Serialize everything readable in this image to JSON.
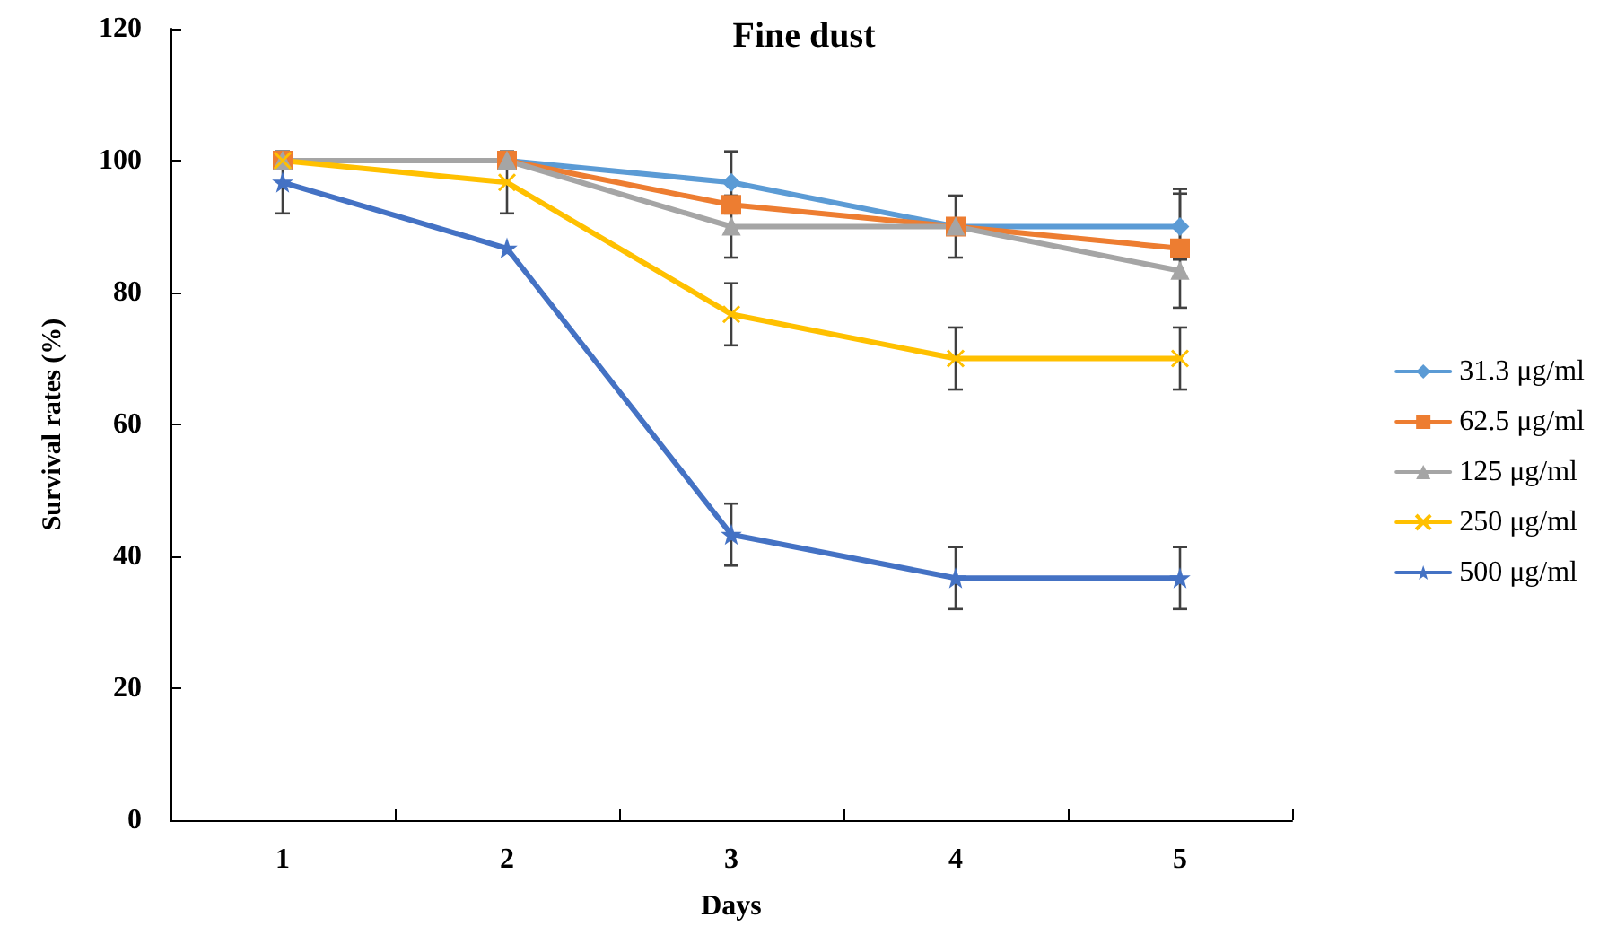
{
  "chart_data": {
    "type": "line",
    "title": "Fine dust",
    "xlabel": "Days",
    "ylabel": "Survival rates (%)",
    "categories": [
      "1",
      "2",
      "3",
      "4",
      "5"
    ],
    "ylim": [
      0,
      120
    ],
    "yticks": [
      0,
      20,
      40,
      60,
      80,
      100,
      120
    ],
    "grid": false,
    "legend": "right",
    "series": [
      {
        "name": "31.3 μg/ml",
        "color": "#5b9bd5",
        "marker": "diamond",
        "values": [
          100,
          100,
          96.7,
          90,
          90
        ],
        "errors": [
          null,
          null,
          4.7,
          null,
          5
        ]
      },
      {
        "name": "62.5 μg/ml",
        "color": "#ed7d31",
        "marker": "square",
        "values": [
          100,
          100,
          93.3,
          90,
          86.7
        ],
        "errors": [
          null,
          null,
          null,
          null,
          9
        ]
      },
      {
        "name": "125 μg/ml",
        "color": "#a5a5a5",
        "marker": "triangle",
        "values": [
          100,
          100,
          90,
          90,
          83.3
        ],
        "errors": [
          null,
          null,
          4.7,
          4.7,
          null
        ]
      },
      {
        "name": "250 μg/ml",
        "color": "#ffc000",
        "marker": "cross",
        "values": [
          100,
          96.7,
          76.7,
          70,
          70
        ],
        "errors": [
          null,
          4.7,
          4.7,
          4.7,
          4.7
        ]
      },
      {
        "name": "500 μg/ml",
        "color": "#4472c4",
        "marker": "star",
        "values": [
          96.7,
          86.7,
          43.3,
          36.7,
          36.7
        ],
        "errors": [
          4.7,
          null,
          4.7,
          4.7,
          4.7
        ]
      }
    ]
  }
}
